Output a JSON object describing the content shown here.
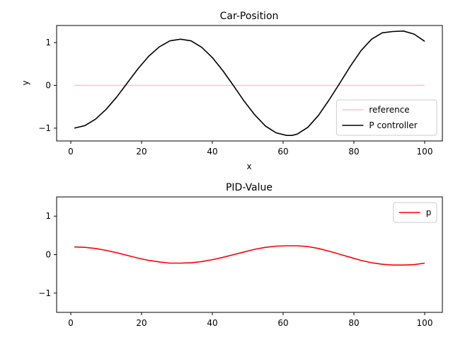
{
  "chart_data": [
    {
      "type": "line",
      "title": "Car-Position",
      "xlabel": "x",
      "ylabel": "y",
      "xlim": [
        -4,
        105
      ],
      "ylim": [
        -1.3,
        1.4
      ],
      "xticks": [
        0,
        20,
        40,
        60,
        80,
        100
      ],
      "yticks": [
        -1,
        0,
        1
      ],
      "ytick_labels": [
        "−1",
        "0",
        "1"
      ],
      "legend": "lower-right",
      "series": [
        {
          "name": "reference",
          "color": "#ffc0cb",
          "x": [
            1,
            100
          ],
          "y": [
            0,
            0
          ]
        },
        {
          "name": "P controller",
          "color": "#000000",
          "x": [
            1,
            4,
            7,
            10,
            13,
            16,
            19,
            22,
            25,
            28,
            31,
            34,
            37,
            40,
            43,
            46,
            49,
            52,
            55,
            58,
            61,
            62.5,
            64,
            67,
            70,
            73,
            76,
            79,
            82,
            85,
            88,
            91,
            94,
            97,
            100
          ],
          "y": [
            -1.0,
            -0.94,
            -0.79,
            -0.56,
            -0.27,
            0.06,
            0.39,
            0.68,
            0.9,
            1.04,
            1.08,
            1.04,
            0.89,
            0.65,
            0.34,
            -0.01,
            -0.37,
            -0.69,
            -0.95,
            -1.11,
            -1.17,
            -1.17,
            -1.14,
            -0.98,
            -0.7,
            -0.34,
            0.05,
            0.45,
            0.81,
            1.08,
            1.23,
            1.26,
            1.27,
            1.2,
            1.03
          ]
        }
      ]
    },
    {
      "type": "line",
      "title": "PID-Value",
      "xlabel": "",
      "ylabel": "",
      "xlim": [
        -4,
        105
      ],
      "ylim": [
        -1.5,
        1.5
      ],
      "xticks": [
        0,
        20,
        40,
        60,
        80,
        100
      ],
      "yticks": [
        -1,
        0,
        1
      ],
      "ytick_labels": [
        "−1",
        "0",
        "1"
      ],
      "legend": "top-right",
      "series": [
        {
          "name": "p",
          "color": "#ff0000",
          "x": [
            1,
            4,
            7,
            10,
            13,
            16,
            19,
            22,
            25,
            28,
            31,
            34,
            37,
            40,
            43,
            46,
            49,
            52,
            55,
            58,
            61,
            64,
            67,
            70,
            73,
            76,
            79,
            82,
            85,
            88,
            91,
            94,
            97,
            100
          ],
          "y": [
            0.2,
            0.19,
            0.16,
            0.11,
            0.05,
            -0.02,
            -0.09,
            -0.15,
            -0.19,
            -0.22,
            -0.22,
            -0.21,
            -0.18,
            -0.13,
            -0.07,
            0.0,
            0.07,
            0.14,
            0.19,
            0.22,
            0.23,
            0.23,
            0.21,
            0.16,
            0.09,
            0.01,
            -0.07,
            -0.15,
            -0.21,
            -0.25,
            -0.27,
            -0.27,
            -0.26,
            -0.22
          ]
        }
      ]
    }
  ]
}
